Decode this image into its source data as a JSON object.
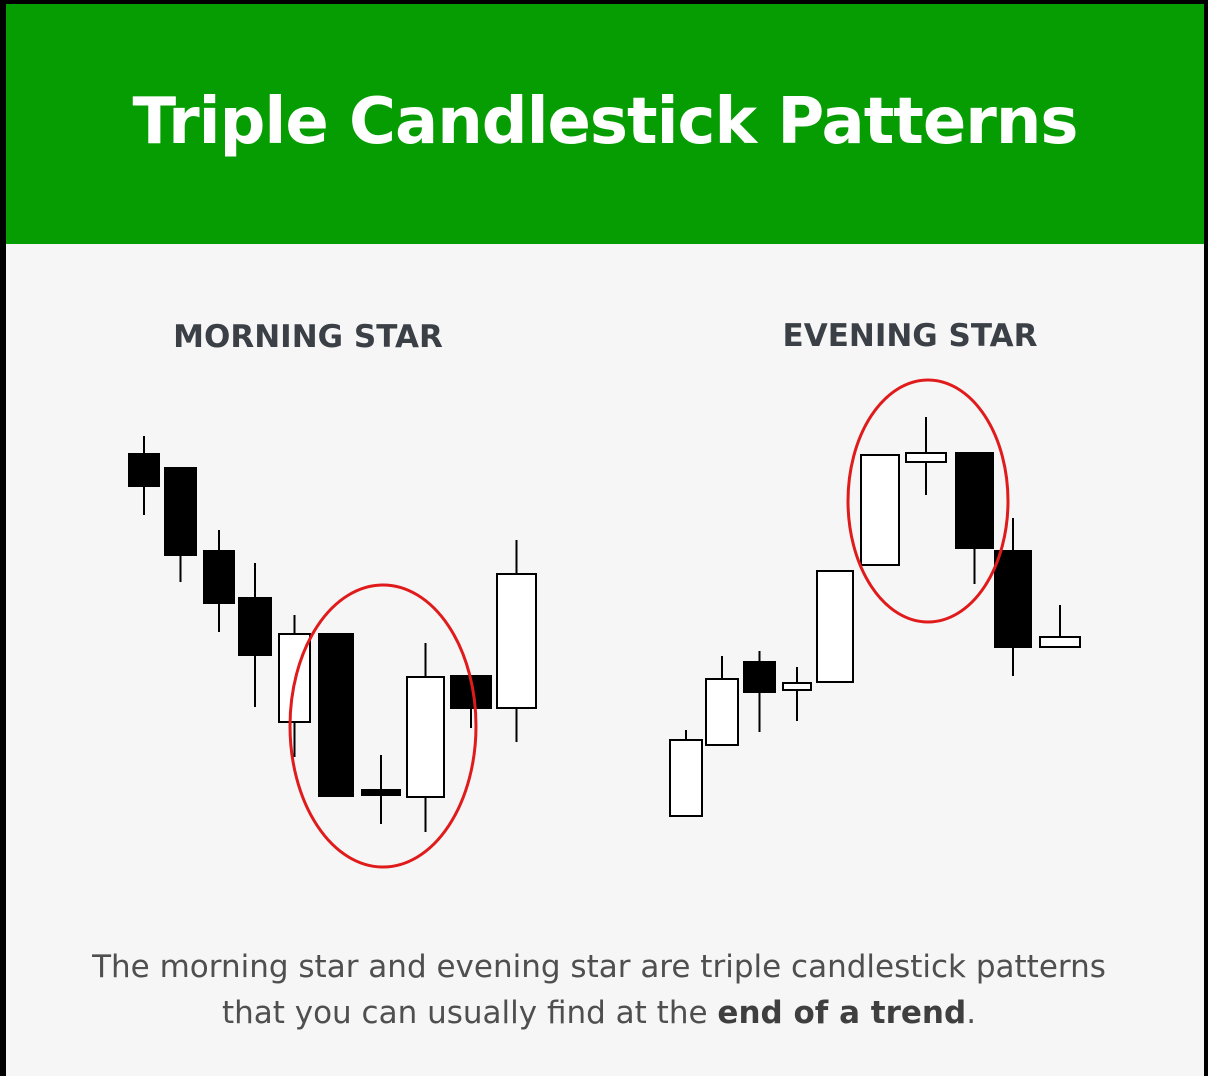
{
  "header": {
    "title": "Triple Candlestick Patterns"
  },
  "colors": {
    "header_bg": "#059d02",
    "panel_bg": "#f6f6f6",
    "bearish_candle": "#000000",
    "bullish_candle": "#ffffff",
    "highlight_circle": "#e01b1b"
  },
  "patterns": [
    {
      "label": "MORNING STAR",
      "highlighted_candles": 3,
      "candles": [
        {
          "type": "bearish"
        },
        {
          "type": "bearish"
        },
        {
          "type": "bearish"
        },
        {
          "type": "bearish"
        },
        {
          "type": "bullish"
        },
        {
          "type": "bearish"
        },
        {
          "type": "doji"
        },
        {
          "type": "bullish"
        },
        {
          "type": "bearish"
        },
        {
          "type": "bullish"
        }
      ]
    },
    {
      "label": "EVENING STAR",
      "highlighted_candles": 3,
      "candles": [
        {
          "type": "bullish"
        },
        {
          "type": "bullish"
        },
        {
          "type": "bearish"
        },
        {
          "type": "doji"
        },
        {
          "type": "bullish"
        },
        {
          "type": "bullish"
        },
        {
          "type": "doji"
        },
        {
          "type": "bearish"
        },
        {
          "type": "bearish"
        },
        {
          "type": "doji"
        }
      ]
    }
  ],
  "caption": {
    "line1": "The morning star and evening star are triple candlestick patterns",
    "line2_prefix": "that you can usually find at the ",
    "line2_bold": "end of a trend",
    "line2_suffix": "."
  }
}
